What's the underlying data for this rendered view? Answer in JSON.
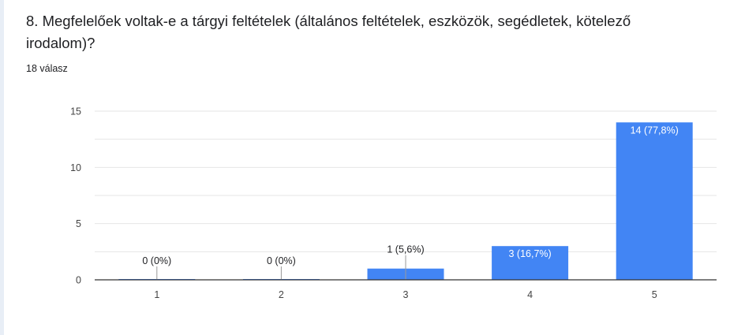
{
  "question": {
    "title": "8. Megfelelőek voltak-e a tárgyi feltételek (általános feltételek, eszközök, segédletek, kötelező irodalom)?",
    "response_count": "18 válasz"
  },
  "colors": {
    "bar": "#4285f4",
    "gridline": "#e6e6e6",
    "axis": "#333333",
    "text": "#202124",
    "tick_text": "#444444"
  },
  "chart_data": {
    "type": "bar",
    "title": "",
    "xlabel": "",
    "ylabel": "",
    "categories": [
      "1",
      "2",
      "3",
      "4",
      "5"
    ],
    "values": [
      0,
      0,
      1,
      3,
      14
    ],
    "data_labels": [
      "0 (0%)",
      "0 (0%)",
      "1 (5,6%)",
      "3 (16,7%)",
      "14 (77,8%)"
    ],
    "ylim": [
      0,
      15
    ],
    "yticks": [
      0,
      5,
      10,
      15
    ],
    "grid": true,
    "legend": "none"
  }
}
